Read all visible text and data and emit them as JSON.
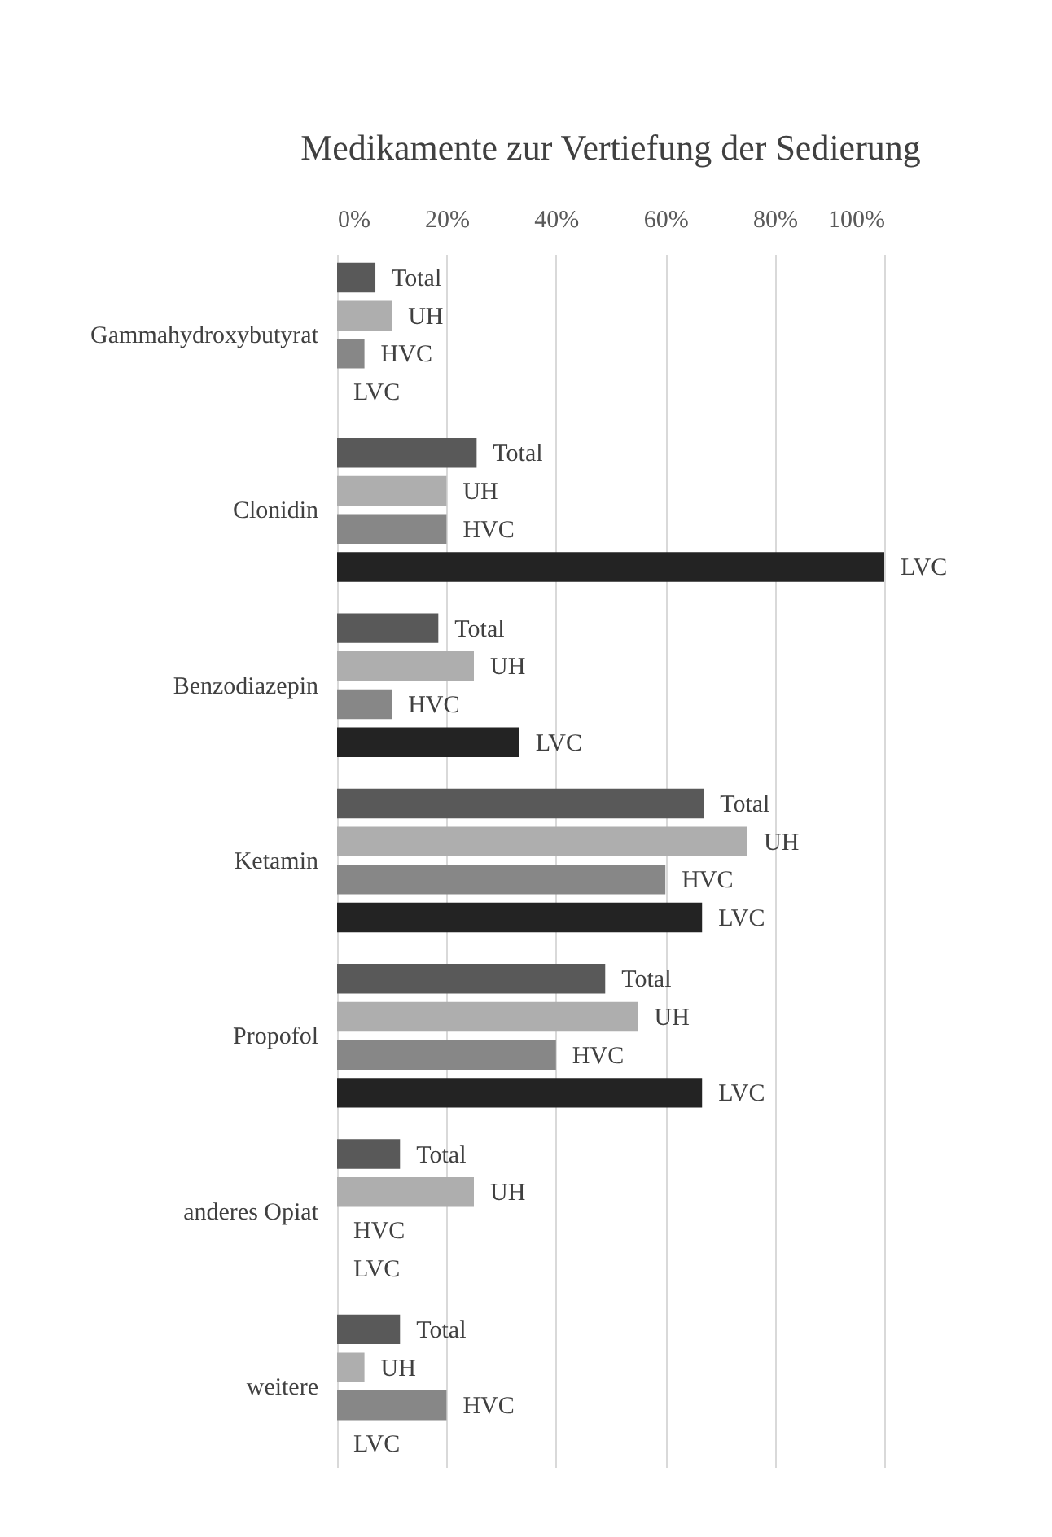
{
  "chart_data": {
    "type": "bar",
    "orientation": "horizontal",
    "title": "Medikamente zur Vertiefung der Sedierung",
    "categories": [
      "Gammahydroxybutyrat",
      "Clonidin",
      "Benzodiazepin",
      "Ketamin",
      "Propofol",
      "anderes Opiat",
      "weitere"
    ],
    "series": [
      {
        "name": "Total",
        "color": "#595959",
        "values": [
          7,
          25.5,
          18.5,
          67,
          49,
          11.5,
          11.5
        ]
      },
      {
        "name": "UH",
        "color": "#aeaeae",
        "values": [
          10,
          20,
          25,
          75,
          55,
          25,
          5
        ]
      },
      {
        "name": "HVC",
        "color": "#878787",
        "values": [
          5,
          20,
          10,
          60,
          40,
          0,
          20
        ]
      },
      {
        "name": "LVC",
        "color": "#232323",
        "values": [
          0,
          100,
          33.3,
          66.7,
          66.7,
          0,
          0
        ]
      }
    ],
    "xlim": [
      0,
      100
    ],
    "xticks": [
      {
        "value": 0,
        "label": "0%"
      },
      {
        "value": 20,
        "label": "20%"
      },
      {
        "value": 40,
        "label": "40%"
      },
      {
        "value": 60,
        "label": "60%"
      },
      {
        "value": 80,
        "label": "80%"
      },
      {
        "value": 100,
        "label": "100%"
      }
    ],
    "grid": "x"
  }
}
